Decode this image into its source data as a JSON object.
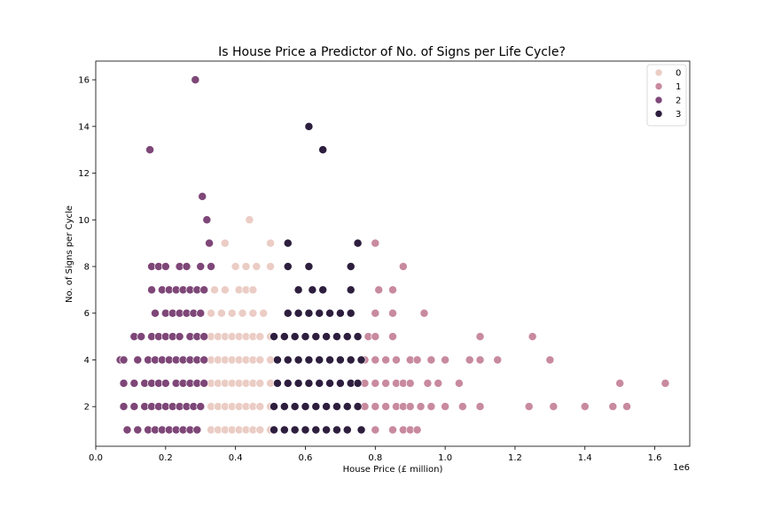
{
  "chart_data": {
    "type": "scatter",
    "title": "Is House Price a Predictor of No. of Signs per Life Cycle?",
    "xlabel": "House Price (£ million)",
    "ylabel": "No. of Signs per Cycle",
    "x_offset_label": "1e6",
    "xlim": [
      0,
      1.7
    ],
    "ylim": [
      0.3,
      16.8
    ],
    "xticks": [
      0.0,
      0.2,
      0.4,
      0.6,
      0.8,
      1.0,
      1.2,
      1.4,
      1.6
    ],
    "xtick_labels": [
      "0.0",
      "0.2",
      "0.4",
      "0.6",
      "0.8",
      "1.0",
      "1.2",
      "1.4",
      "1.6"
    ],
    "yticks": [
      2,
      4,
      6,
      8,
      10,
      12,
      14,
      16
    ],
    "ytick_labels": [
      "2",
      "4",
      "6",
      "8",
      "10",
      "12",
      "14",
      "16"
    ],
    "grid": false,
    "legend_position": "top-right",
    "colors": {
      "0": "#ebcdc5",
      "1": "#c88a9f",
      "2": "#7e4778",
      "3": "#2d1e3e"
    },
    "series": [
      {
        "name": "0",
        "color": "#ebcdc5",
        "points": [
          [
            0.44,
            10
          ],
          [
            0.37,
            9
          ],
          [
            0.5,
            9
          ],
          [
            0.4,
            8
          ],
          [
            0.43,
            8
          ],
          [
            0.46,
            8
          ],
          [
            0.5,
            8
          ],
          [
            0.34,
            7
          ],
          [
            0.37,
            7
          ],
          [
            0.41,
            7
          ],
          [
            0.43,
            7
          ],
          [
            0.45,
            7
          ],
          [
            0.33,
            6
          ],
          [
            0.36,
            6
          ],
          [
            0.39,
            6
          ],
          [
            0.42,
            6
          ],
          [
            0.45,
            6
          ],
          [
            0.48,
            6
          ],
          [
            0.33,
            5
          ],
          [
            0.35,
            5
          ],
          [
            0.37,
            5
          ],
          [
            0.39,
            5
          ],
          [
            0.41,
            5
          ],
          [
            0.43,
            5
          ],
          [
            0.45,
            5
          ],
          [
            0.47,
            5
          ],
          [
            0.5,
            5
          ],
          [
            0.33,
            4
          ],
          [
            0.35,
            4
          ],
          [
            0.37,
            4
          ],
          [
            0.39,
            4
          ],
          [
            0.41,
            4
          ],
          [
            0.43,
            4
          ],
          [
            0.45,
            4
          ],
          [
            0.47,
            4
          ],
          [
            0.5,
            4
          ],
          [
            0.33,
            3
          ],
          [
            0.35,
            3
          ],
          [
            0.37,
            3
          ],
          [
            0.39,
            3
          ],
          [
            0.41,
            3
          ],
          [
            0.43,
            3
          ],
          [
            0.45,
            3
          ],
          [
            0.47,
            3
          ],
          [
            0.5,
            3
          ],
          [
            0.33,
            2
          ],
          [
            0.35,
            2
          ],
          [
            0.37,
            2
          ],
          [
            0.39,
            2
          ],
          [
            0.41,
            2
          ],
          [
            0.43,
            2
          ],
          [
            0.45,
            2
          ],
          [
            0.47,
            2
          ],
          [
            0.5,
            2
          ],
          [
            0.33,
            1
          ],
          [
            0.35,
            1
          ],
          [
            0.37,
            1
          ],
          [
            0.39,
            1
          ],
          [
            0.41,
            1
          ],
          [
            0.43,
            1
          ],
          [
            0.45,
            1
          ],
          [
            0.47,
            1
          ],
          [
            0.5,
            1
          ]
        ]
      },
      {
        "name": "1",
        "color": "#c88a9f",
        "points": [
          [
            0.8,
            9
          ],
          [
            0.88,
            8
          ],
          [
            0.81,
            7
          ],
          [
            0.85,
            7
          ],
          [
            0.8,
            6
          ],
          [
            0.85,
            6
          ],
          [
            0.94,
            6
          ],
          [
            0.78,
            5
          ],
          [
            0.8,
            5
          ],
          [
            0.85,
            5
          ],
          [
            1.1,
            5
          ],
          [
            1.25,
            5
          ],
          [
            0.77,
            4
          ],
          [
            0.8,
            4
          ],
          [
            0.83,
            4
          ],
          [
            0.86,
            4
          ],
          [
            0.9,
            4
          ],
          [
            0.92,
            4
          ],
          [
            0.96,
            4
          ],
          [
            1.0,
            4
          ],
          [
            1.07,
            4
          ],
          [
            1.1,
            4
          ],
          [
            1.15,
            4
          ],
          [
            1.3,
            4
          ],
          [
            0.77,
            3
          ],
          [
            0.8,
            3
          ],
          [
            0.83,
            3
          ],
          [
            0.86,
            3
          ],
          [
            0.88,
            3
          ],
          [
            0.9,
            3
          ],
          [
            0.95,
            3
          ],
          [
            0.98,
            3
          ],
          [
            1.04,
            3
          ],
          [
            1.5,
            3
          ],
          [
            1.63,
            3
          ],
          [
            0.77,
            2
          ],
          [
            0.8,
            2
          ],
          [
            0.83,
            2
          ],
          [
            0.86,
            2
          ],
          [
            0.88,
            2
          ],
          [
            0.9,
            2
          ],
          [
            0.93,
            2
          ],
          [
            0.96,
            2
          ],
          [
            1.0,
            2
          ],
          [
            1.05,
            2
          ],
          [
            1.1,
            2
          ],
          [
            1.24,
            2
          ],
          [
            1.31,
            2
          ],
          [
            1.4,
            2
          ],
          [
            1.48,
            2
          ],
          [
            1.52,
            2
          ],
          [
            0.8,
            1
          ],
          [
            0.85,
            1
          ],
          [
            0.88,
            1
          ],
          [
            0.9,
            1
          ],
          [
            0.92,
            1
          ]
        ]
      },
      {
        "name": "2",
        "color": "#7e4778",
        "points": [
          [
            0.285,
            16
          ],
          [
            0.155,
            13
          ],
          [
            0.305,
            11
          ],
          [
            0.318,
            10
          ],
          [
            0.325,
            9
          ],
          [
            0.16,
            8
          ],
          [
            0.18,
            8
          ],
          [
            0.2,
            8
          ],
          [
            0.24,
            8
          ],
          [
            0.26,
            8
          ],
          [
            0.3,
            8
          ],
          [
            0.33,
            8
          ],
          [
            0.16,
            7
          ],
          [
            0.19,
            7
          ],
          [
            0.21,
            7
          ],
          [
            0.23,
            7
          ],
          [
            0.25,
            7
          ],
          [
            0.27,
            7
          ],
          [
            0.29,
            7
          ],
          [
            0.31,
            7
          ],
          [
            0.17,
            6
          ],
          [
            0.2,
            6
          ],
          [
            0.22,
            6
          ],
          [
            0.24,
            6
          ],
          [
            0.26,
            6
          ],
          [
            0.28,
            6
          ],
          [
            0.3,
            6
          ],
          [
            0.11,
            5
          ],
          [
            0.13,
            5
          ],
          [
            0.16,
            5
          ],
          [
            0.18,
            5
          ],
          [
            0.2,
            5
          ],
          [
            0.22,
            5
          ],
          [
            0.24,
            5
          ],
          [
            0.27,
            5
          ],
          [
            0.29,
            5
          ],
          [
            0.31,
            5
          ],
          [
            0.07,
            4
          ],
          [
            0.08,
            4
          ],
          [
            0.12,
            4
          ],
          [
            0.15,
            4
          ],
          [
            0.17,
            4
          ],
          [
            0.19,
            4
          ],
          [
            0.21,
            4
          ],
          [
            0.23,
            4
          ],
          [
            0.25,
            4
          ],
          [
            0.27,
            4
          ],
          [
            0.29,
            4
          ],
          [
            0.31,
            4
          ],
          [
            0.08,
            3
          ],
          [
            0.11,
            3
          ],
          [
            0.14,
            3
          ],
          [
            0.16,
            3
          ],
          [
            0.18,
            3
          ],
          [
            0.2,
            3
          ],
          [
            0.23,
            3
          ],
          [
            0.25,
            3
          ],
          [
            0.27,
            3
          ],
          [
            0.29,
            3
          ],
          [
            0.31,
            3
          ],
          [
            0.08,
            2
          ],
          [
            0.11,
            2
          ],
          [
            0.14,
            2
          ],
          [
            0.16,
            2
          ],
          [
            0.18,
            2
          ],
          [
            0.2,
            2
          ],
          [
            0.22,
            2
          ],
          [
            0.24,
            2
          ],
          [
            0.26,
            2
          ],
          [
            0.28,
            2
          ],
          [
            0.3,
            2
          ],
          [
            0.09,
            1
          ],
          [
            0.12,
            1
          ],
          [
            0.15,
            1
          ],
          [
            0.17,
            1
          ],
          [
            0.19,
            1
          ],
          [
            0.21,
            1
          ],
          [
            0.23,
            1
          ],
          [
            0.25,
            1
          ],
          [
            0.27,
            1
          ],
          [
            0.29,
            1
          ]
        ]
      },
      {
        "name": "3",
        "color": "#2d1e3e",
        "points": [
          [
            0.61,
            14
          ],
          [
            0.65,
            13
          ],
          [
            0.55,
            9
          ],
          [
            0.75,
            9
          ],
          [
            0.55,
            8
          ],
          [
            0.61,
            8
          ],
          [
            0.73,
            8
          ],
          [
            0.58,
            7
          ],
          [
            0.62,
            7
          ],
          [
            0.65,
            7
          ],
          [
            0.73,
            7
          ],
          [
            0.55,
            6
          ],
          [
            0.58,
            6
          ],
          [
            0.61,
            6
          ],
          [
            0.64,
            6
          ],
          [
            0.67,
            6
          ],
          [
            0.7,
            6
          ],
          [
            0.73,
            6
          ],
          [
            0.51,
            5
          ],
          [
            0.54,
            5
          ],
          [
            0.57,
            5
          ],
          [
            0.6,
            5
          ],
          [
            0.63,
            5
          ],
          [
            0.66,
            5
          ],
          [
            0.69,
            5
          ],
          [
            0.72,
            5
          ],
          [
            0.75,
            5
          ],
          [
            0.52,
            4
          ],
          [
            0.55,
            4
          ],
          [
            0.58,
            4
          ],
          [
            0.61,
            4
          ],
          [
            0.64,
            4
          ],
          [
            0.67,
            4
          ],
          [
            0.7,
            4
          ],
          [
            0.73,
            4
          ],
          [
            0.76,
            4
          ],
          [
            0.52,
            3
          ],
          [
            0.55,
            3
          ],
          [
            0.58,
            3
          ],
          [
            0.61,
            3
          ],
          [
            0.64,
            3
          ],
          [
            0.67,
            3
          ],
          [
            0.7,
            3
          ],
          [
            0.73,
            3
          ],
          [
            0.75,
            3
          ],
          [
            0.51,
            2
          ],
          [
            0.54,
            2
          ],
          [
            0.57,
            2
          ],
          [
            0.6,
            2
          ],
          [
            0.63,
            2
          ],
          [
            0.66,
            2
          ],
          [
            0.69,
            2
          ],
          [
            0.72,
            2
          ],
          [
            0.75,
            2
          ],
          [
            0.51,
            1
          ],
          [
            0.54,
            1
          ],
          [
            0.57,
            1
          ],
          [
            0.6,
            1
          ],
          [
            0.63,
            1
          ],
          [
            0.66,
            1
          ],
          [
            0.69,
            1
          ],
          [
            0.72,
            1
          ],
          [
            0.76,
            1
          ]
        ]
      }
    ]
  }
}
